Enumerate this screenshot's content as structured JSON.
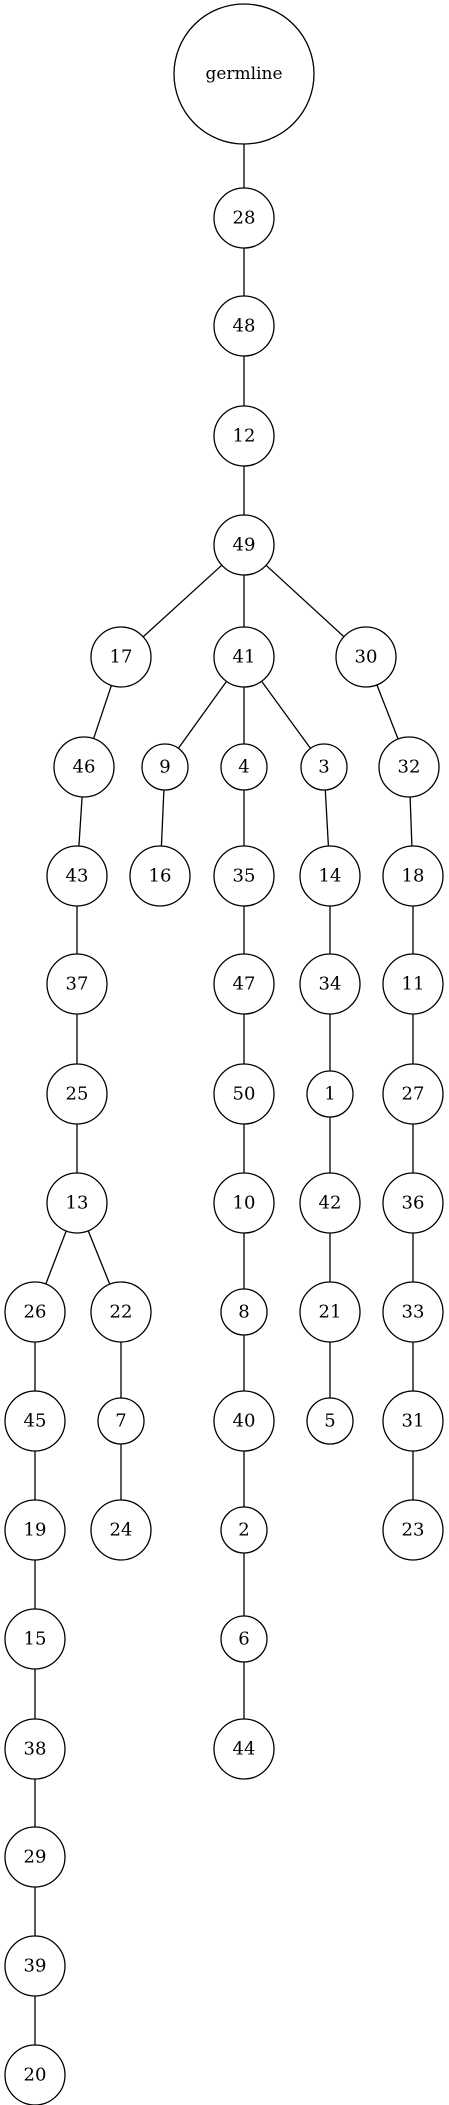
{
  "tree": {
    "root": "germline",
    "nodes": [
      {
        "id": "germline",
        "label": "germline"
      },
      {
        "id": "28",
        "label": "28"
      },
      {
        "id": "48",
        "label": "48"
      },
      {
        "id": "12",
        "label": "12"
      },
      {
        "id": "49",
        "label": "49"
      },
      {
        "id": "17",
        "label": "17"
      },
      {
        "id": "41",
        "label": "41"
      },
      {
        "id": "30",
        "label": "30"
      },
      {
        "id": "46",
        "label": "46"
      },
      {
        "id": "9",
        "label": "9"
      },
      {
        "id": "4",
        "label": "4"
      },
      {
        "id": "3",
        "label": "3"
      },
      {
        "id": "32",
        "label": "32"
      },
      {
        "id": "43",
        "label": "43"
      },
      {
        "id": "16",
        "label": "16"
      },
      {
        "id": "35",
        "label": "35"
      },
      {
        "id": "14",
        "label": "14"
      },
      {
        "id": "18",
        "label": "18"
      },
      {
        "id": "37",
        "label": "37"
      },
      {
        "id": "47",
        "label": "47"
      },
      {
        "id": "34",
        "label": "34"
      },
      {
        "id": "11",
        "label": "11"
      },
      {
        "id": "25",
        "label": "25"
      },
      {
        "id": "50",
        "label": "50"
      },
      {
        "id": "1",
        "label": "1"
      },
      {
        "id": "27",
        "label": "27"
      },
      {
        "id": "13",
        "label": "13"
      },
      {
        "id": "10",
        "label": "10"
      },
      {
        "id": "42",
        "label": "42"
      },
      {
        "id": "36",
        "label": "36"
      },
      {
        "id": "26",
        "label": "26"
      },
      {
        "id": "22",
        "label": "22"
      },
      {
        "id": "8",
        "label": "8"
      },
      {
        "id": "21",
        "label": "21"
      },
      {
        "id": "33",
        "label": "33"
      },
      {
        "id": "45",
        "label": "45"
      },
      {
        "id": "7",
        "label": "7"
      },
      {
        "id": "40",
        "label": "40"
      },
      {
        "id": "5",
        "label": "5"
      },
      {
        "id": "31",
        "label": "31"
      },
      {
        "id": "19",
        "label": "19"
      },
      {
        "id": "24",
        "label": "24"
      },
      {
        "id": "2",
        "label": "2"
      },
      {
        "id": "23",
        "label": "23"
      },
      {
        "id": "15",
        "label": "15"
      },
      {
        "id": "6",
        "label": "6"
      },
      {
        "id": "38",
        "label": "38"
      },
      {
        "id": "44",
        "label": "44"
      },
      {
        "id": "29",
        "label": "29"
      },
      {
        "id": "39",
        "label": "39"
      },
      {
        "id": "20",
        "label": "20"
      }
    ],
    "edges": [
      [
        "germline",
        "28"
      ],
      [
        "28",
        "48"
      ],
      [
        "48",
        "12"
      ],
      [
        "12",
        "49"
      ],
      [
        "49",
        "17"
      ],
      [
        "49",
        "41"
      ],
      [
        "49",
        "30"
      ],
      [
        "17",
        "46"
      ],
      [
        "46",
        "43"
      ],
      [
        "43",
        "37"
      ],
      [
        "37",
        "25"
      ],
      [
        "25",
        "13"
      ],
      [
        "13",
        "26"
      ],
      [
        "13",
        "22"
      ],
      [
        "26",
        "45"
      ],
      [
        "45",
        "19"
      ],
      [
        "19",
        "15"
      ],
      [
        "15",
        "38"
      ],
      [
        "38",
        "29"
      ],
      [
        "29",
        "39"
      ],
      [
        "39",
        "20"
      ],
      [
        "22",
        "7"
      ],
      [
        "7",
        "24"
      ],
      [
        "41",
        "9"
      ],
      [
        "41",
        "4"
      ],
      [
        "41",
        "3"
      ],
      [
        "9",
        "16"
      ],
      [
        "4",
        "35"
      ],
      [
        "35",
        "47"
      ],
      [
        "47",
        "50"
      ],
      [
        "50",
        "10"
      ],
      [
        "10",
        "8"
      ],
      [
        "8",
        "40"
      ],
      [
        "40",
        "2"
      ],
      [
        "2",
        "6"
      ],
      [
        "6",
        "44"
      ],
      [
        "3",
        "14"
      ],
      [
        "14",
        "34"
      ],
      [
        "34",
        "1"
      ],
      [
        "1",
        "42"
      ],
      [
        "42",
        "21"
      ],
      [
        "21",
        "5"
      ],
      [
        "30",
        "32"
      ],
      [
        "32",
        "18"
      ],
      [
        "18",
        "11"
      ],
      [
        "11",
        "27"
      ],
      [
        "27",
        "36"
      ],
      [
        "36",
        "33"
      ],
      [
        "33",
        "31"
      ],
      [
        "31",
        "23"
      ]
    ]
  }
}
